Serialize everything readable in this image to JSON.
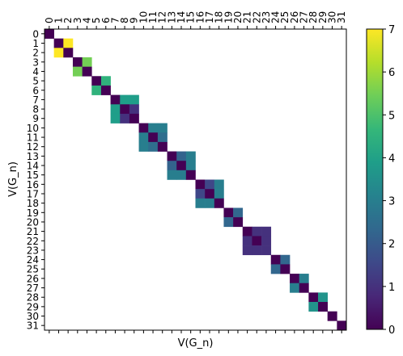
{
  "chart_data": {
    "type": "heatmap",
    "title": "",
    "xlabel": "V(G_n)",
    "ylabel": "V(G_n)",
    "x_ticks": [
      "0",
      "1",
      "2",
      "3",
      "4",
      "5",
      "6",
      "7",
      "8",
      "9",
      "10",
      "11",
      "12",
      "13",
      "14",
      "15",
      "16",
      "17",
      "18",
      "19",
      "20",
      "21",
      "22",
      "23",
      "24",
      "25",
      "26",
      "27",
      "28",
      "29",
      "30",
      "31"
    ],
    "y_ticks": [
      "0",
      "1",
      "2",
      "3",
      "4",
      "5",
      "6",
      "7",
      "8",
      "9",
      "10",
      "11",
      "12",
      "13",
      "14",
      "15",
      "16",
      "17",
      "18",
      "19",
      "20",
      "21",
      "22",
      "23",
      "24",
      "25",
      "26",
      "27",
      "28",
      "29",
      "30",
      "31"
    ],
    "x_tick_position": "top",
    "colormap": "viridis",
    "vmin": 0,
    "vmax": 7,
    "colorbar_ticks": [
      "0",
      "1",
      "2",
      "3",
      "4",
      "5",
      "6",
      "7"
    ],
    "background_value": null,
    "background_color": "#ffffff",
    "cells": [
      {
        "row": 0,
        "col": 0,
        "value": 0
      },
      {
        "row": 1,
        "col": 1,
        "value": 0
      },
      {
        "row": 1,
        "col": 2,
        "value": 7
      },
      {
        "row": 2,
        "col": 1,
        "value": 7
      },
      {
        "row": 2,
        "col": 2,
        "value": 0
      },
      {
        "row": 3,
        "col": 3,
        "value": 0
      },
      {
        "row": 3,
        "col": 4,
        "value": 5.5
      },
      {
        "row": 4,
        "col": 3,
        "value": 5.5
      },
      {
        "row": 4,
        "col": 4,
        "value": 0
      },
      {
        "row": 5,
        "col": 5,
        "value": 0
      },
      {
        "row": 5,
        "col": 6,
        "value": 4.5
      },
      {
        "row": 6,
        "col": 5,
        "value": 4.5
      },
      {
        "row": 6,
        "col": 6,
        "value": 0
      },
      {
        "row": 7,
        "col": 7,
        "value": 0
      },
      {
        "row": 7,
        "col": 8,
        "value": 3.9
      },
      {
        "row": 7,
        "col": 9,
        "value": 3.9
      },
      {
        "row": 8,
        "col": 7,
        "value": 3.9
      },
      {
        "row": 8,
        "col": 8,
        "value": 0
      },
      {
        "row": 8,
        "col": 9,
        "value": 1
      },
      {
        "row": 9,
        "col": 7,
        "value": 3.9
      },
      {
        "row": 9,
        "col": 8,
        "value": 1
      },
      {
        "row": 9,
        "col": 9,
        "value": 0
      },
      {
        "row": 10,
        "col": 10,
        "value": 0
      },
      {
        "row": 10,
        "col": 11,
        "value": 3
      },
      {
        "row": 10,
        "col": 12,
        "value": 3
      },
      {
        "row": 11,
        "col": 10,
        "value": 3
      },
      {
        "row": 11,
        "col": 11,
        "value": 0
      },
      {
        "row": 11,
        "col": 12,
        "value": 2.5
      },
      {
        "row": 12,
        "col": 10,
        "value": 3
      },
      {
        "row": 12,
        "col": 11,
        "value": 2.5
      },
      {
        "row": 12,
        "col": 12,
        "value": 0
      },
      {
        "row": 13,
        "col": 13,
        "value": 0
      },
      {
        "row": 13,
        "col": 14,
        "value": 2.2
      },
      {
        "row": 13,
        "col": 15,
        "value": 3
      },
      {
        "row": 14,
        "col": 13,
        "value": 2.2
      },
      {
        "row": 14,
        "col": 14,
        "value": 0
      },
      {
        "row": 14,
        "col": 15,
        "value": 3
      },
      {
        "row": 15,
        "col": 13,
        "value": 3
      },
      {
        "row": 15,
        "col": 14,
        "value": 3
      },
      {
        "row": 15,
        "col": 15,
        "value": 0
      },
      {
        "row": 16,
        "col": 16,
        "value": 0
      },
      {
        "row": 16,
        "col": 17,
        "value": 1.5
      },
      {
        "row": 16,
        "col": 18,
        "value": 3
      },
      {
        "row": 17,
        "col": 16,
        "value": 1.5
      },
      {
        "row": 17,
        "col": 17,
        "value": 0
      },
      {
        "row": 17,
        "col": 18,
        "value": 3
      },
      {
        "row": 18,
        "col": 16,
        "value": 3
      },
      {
        "row": 18,
        "col": 17,
        "value": 3
      },
      {
        "row": 18,
        "col": 18,
        "value": 0
      },
      {
        "row": 19,
        "col": 19,
        "value": 0
      },
      {
        "row": 19,
        "col": 20,
        "value": 2.3
      },
      {
        "row": 20,
        "col": 19,
        "value": 2.3
      },
      {
        "row": 20,
        "col": 20,
        "value": 0
      },
      {
        "row": 21,
        "col": 21,
        "value": 0
      },
      {
        "row": 21,
        "col": 22,
        "value": 1
      },
      {
        "row": 21,
        "col": 23,
        "value": 1
      },
      {
        "row": 22,
        "col": 21,
        "value": 1
      },
      {
        "row": 22,
        "col": 22,
        "value": 0
      },
      {
        "row": 22,
        "col": 23,
        "value": 1
      },
      {
        "row": 23,
        "col": 21,
        "value": 1
      },
      {
        "row": 23,
        "col": 22,
        "value": 1
      },
      {
        "row": 23,
        "col": 23,
        "value": 1
      },
      {
        "row": 24,
        "col": 24,
        "value": 0
      },
      {
        "row": 24,
        "col": 25,
        "value": 2.3
      },
      {
        "row": 25,
        "col": 24,
        "value": 2.3
      },
      {
        "row": 25,
        "col": 25,
        "value": 0
      },
      {
        "row": 26,
        "col": 26,
        "value": 0
      },
      {
        "row": 26,
        "col": 27,
        "value": 3
      },
      {
        "row": 27,
        "col": 26,
        "value": 3
      },
      {
        "row": 27,
        "col": 27,
        "value": 0
      },
      {
        "row": 28,
        "col": 28,
        "value": 0
      },
      {
        "row": 28,
        "col": 29,
        "value": 3.6
      },
      {
        "row": 29,
        "col": 28,
        "value": 3.6
      },
      {
        "row": 29,
        "col": 29,
        "value": 0
      },
      {
        "row": 30,
        "col": 30,
        "value": 0
      },
      {
        "row": 31,
        "col": 31,
        "value": 0
      }
    ]
  }
}
